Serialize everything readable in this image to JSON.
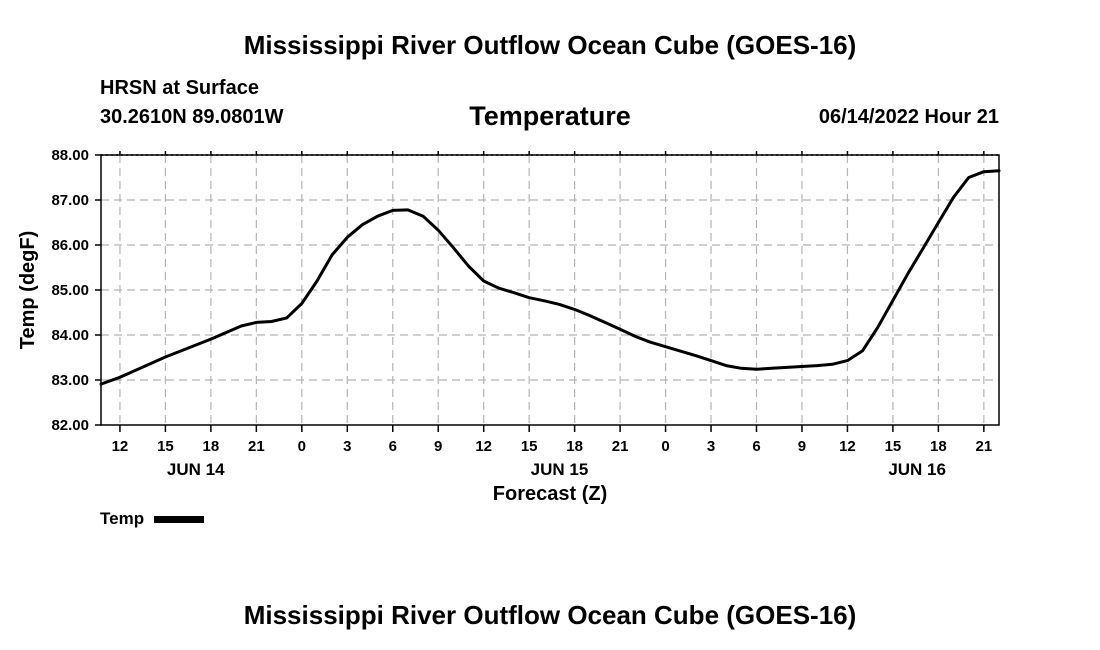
{
  "header": {
    "title": "Mississippi River Outflow Ocean Cube (GOES-16)",
    "station": "HRSN at Surface",
    "coords": "30.2610N  89.0801W",
    "datetime": "06/14/2022 Hour 21"
  },
  "footer": {
    "title": "Mississippi River Outflow Ocean Cube (GOES-16)"
  },
  "chart_data": {
    "type": "line",
    "title": "Temperature",
    "xlabel": "Forecast (Z)",
    "ylabel": "Temp (degF)",
    "ylim": [
      82.0,
      88.0
    ],
    "xlim": [
      10.75,
      70.0
    ],
    "y_ticks": [
      "82.00",
      "83.00",
      "84.00",
      "85.00",
      "86.00",
      "87.00",
      "88.00"
    ],
    "x_ticks": [
      {
        "hour": 12,
        "label": "12"
      },
      {
        "hour": 15,
        "label": "15"
      },
      {
        "hour": 18,
        "label": "18"
      },
      {
        "hour": 21,
        "label": "21"
      },
      {
        "hour": 24,
        "label": "0"
      },
      {
        "hour": 27,
        "label": "3"
      },
      {
        "hour": 30,
        "label": "6"
      },
      {
        "hour": 33,
        "label": "9"
      },
      {
        "hour": 36,
        "label": "12"
      },
      {
        "hour": 39,
        "label": "15"
      },
      {
        "hour": 42,
        "label": "18"
      },
      {
        "hour": 45,
        "label": "21"
      },
      {
        "hour": 48,
        "label": "0"
      },
      {
        "hour": 51,
        "label": "3"
      },
      {
        "hour": 54,
        "label": "6"
      },
      {
        "hour": 57,
        "label": "9"
      },
      {
        "hour": 60,
        "label": "12"
      },
      {
        "hour": 63,
        "label": "15"
      },
      {
        "hour": 66,
        "label": "18"
      },
      {
        "hour": 69,
        "label": "21"
      }
    ],
    "date_labels": [
      {
        "hour": 17,
        "label": "JUN 14"
      },
      {
        "hour": 41,
        "label": "JUN 15"
      },
      {
        "hour": 64.6,
        "label": "JUN 16"
      }
    ],
    "grid": true,
    "legend": "bottom-left",
    "series": [
      {
        "name": "Temp",
        "color": "#000000",
        "points": [
          [
            10.75,
            82.91
          ],
          [
            12,
            83.06
          ],
          [
            15,
            83.51
          ],
          [
            18,
            83.91
          ],
          [
            20,
            84.2
          ],
          [
            21,
            84.28
          ],
          [
            22,
            84.3
          ],
          [
            23,
            84.38
          ],
          [
            24,
            84.7
          ],
          [
            25,
            85.2
          ],
          [
            26,
            85.78
          ],
          [
            27,
            86.17
          ],
          [
            28,
            86.45
          ],
          [
            29,
            86.64
          ],
          [
            30,
            86.77
          ],
          [
            31,
            86.78
          ],
          [
            32,
            86.64
          ],
          [
            33,
            86.33
          ],
          [
            34,
            85.94
          ],
          [
            35,
            85.53
          ],
          [
            36,
            85.2
          ],
          [
            37,
            85.04
          ],
          [
            38,
            84.94
          ],
          [
            39,
            84.83
          ],
          [
            40,
            84.76
          ],
          [
            41,
            84.68
          ],
          [
            42,
            84.57
          ],
          [
            43,
            84.43
          ],
          [
            44,
            84.28
          ],
          [
            45,
            84.13
          ],
          [
            46,
            83.97
          ],
          [
            47,
            83.84
          ],
          [
            48,
            83.74
          ],
          [
            49,
            83.64
          ],
          [
            50,
            83.54
          ],
          [
            51,
            83.43
          ],
          [
            52,
            83.32
          ],
          [
            53,
            83.26
          ],
          [
            54,
            83.24
          ],
          [
            55,
            83.26
          ],
          [
            56,
            83.28
          ],
          [
            57,
            83.3
          ],
          [
            58,
            83.32
          ],
          [
            59,
            83.35
          ],
          [
            60,
            83.43
          ],
          [
            61,
            83.65
          ],
          [
            62,
            84.17
          ],
          [
            63,
            84.77
          ],
          [
            64,
            85.37
          ],
          [
            65,
            85.93
          ],
          [
            66,
            86.5
          ],
          [
            67,
            87.06
          ],
          [
            68,
            87.5
          ],
          [
            69,
            87.63
          ],
          [
            70,
            87.65
          ]
        ]
      }
    ]
  }
}
